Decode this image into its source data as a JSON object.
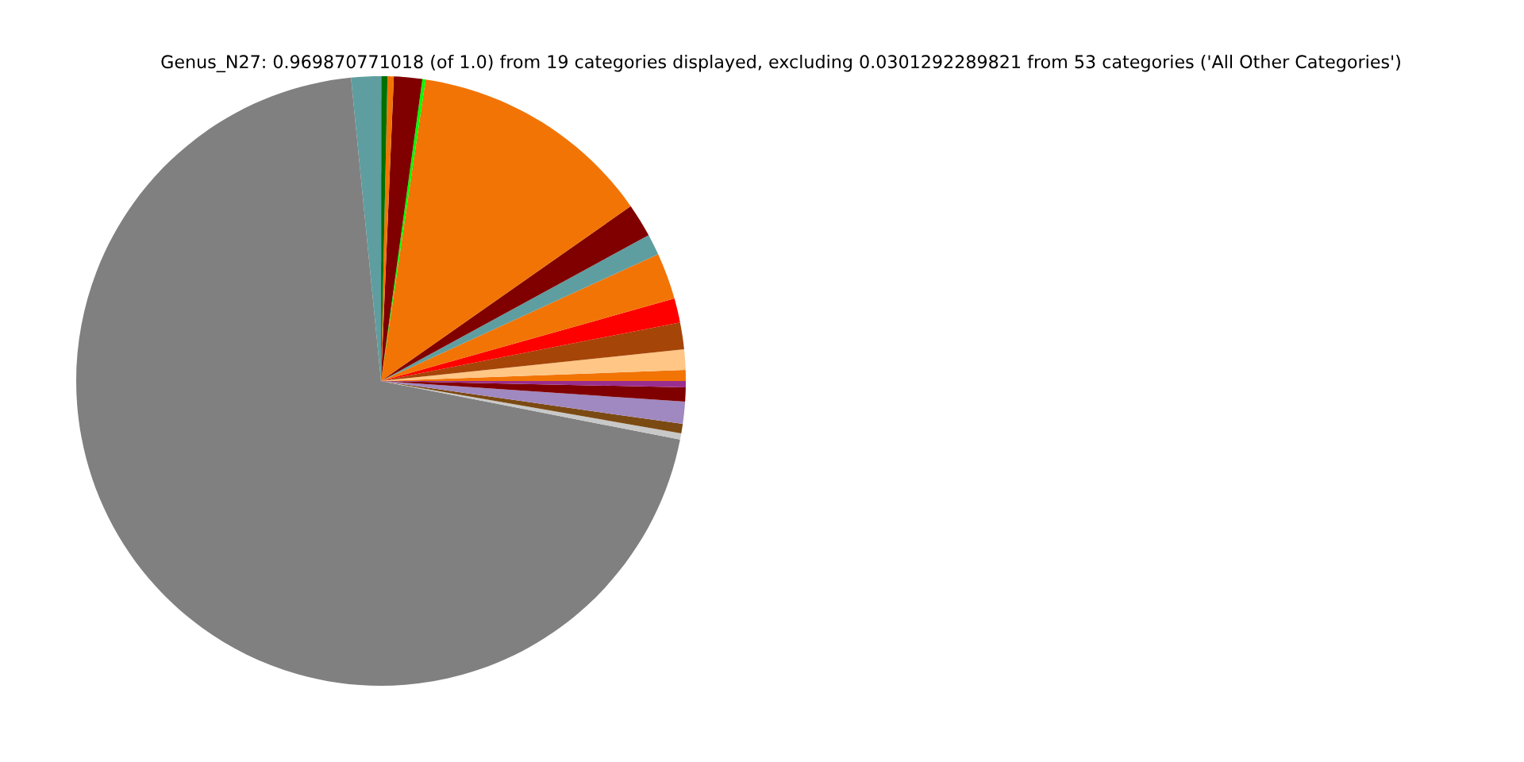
{
  "chart_data": {
    "type": "pie",
    "title": "Genus_N27: 0.969870771018 (of 1.0) from 19 categories displayed, excluding 0.0301292289821 from 53 categories ('All Other Categories')",
    "categories": [
      null,
      null,
      null,
      null,
      null,
      null,
      null,
      null,
      null,
      null,
      null,
      null,
      null,
      null,
      null,
      null,
      null,
      null,
      null
    ],
    "values": [
      0.58,
      1.08,
      1.42,
      1.28,
      2.47,
      1.11,
      1.78,
      12.94,
      0.17,
      1.5,
      0.33,
      0.33,
      1.58,
      70.35,
      0.33,
      0.5,
      1.17,
      0.75,
      0.33
    ],
    "colors": [
      "#f27405",
      "#ffc685",
      "#a64508",
      "#ff0000",
      "#f27405",
      "#5f9ea0",
      "#800000",
      "#f27405",
      "#00ff00",
      "#800000",
      "#f27405",
      "#007000",
      "#5f9ea0",
      "#808080",
      "#c8c8c8",
      "#7b4a12",
      "#a088c0",
      "#800000",
      "#9b2d8f"
    ],
    "legend": false
  }
}
